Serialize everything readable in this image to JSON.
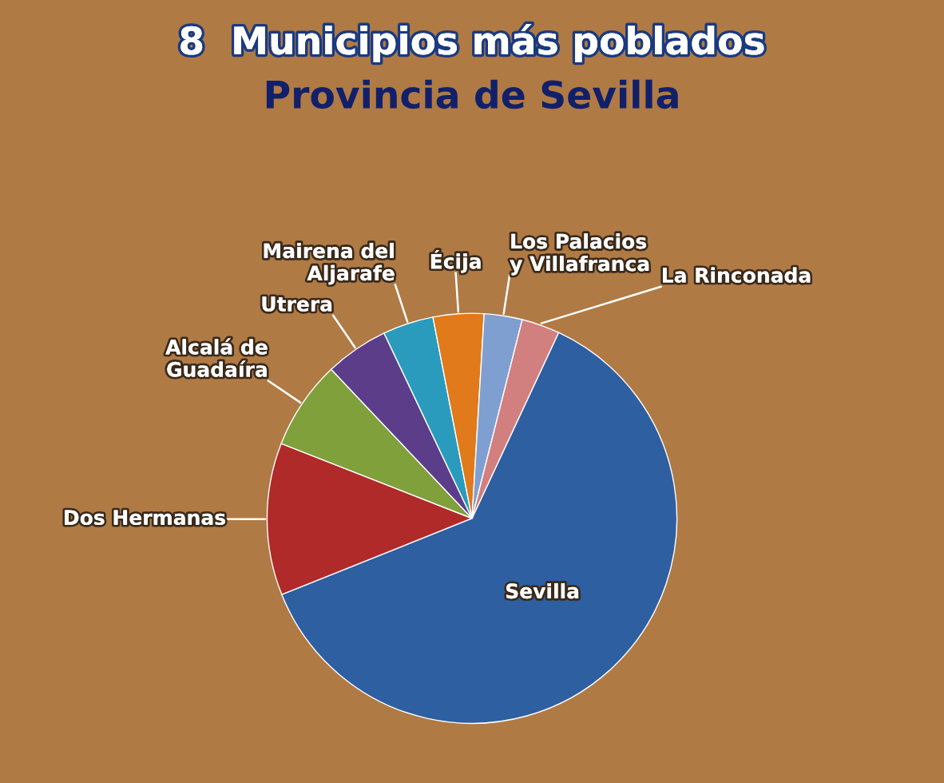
{
  "chart_data": {
    "type": "pie",
    "title": "8  Municipios más poblados",
    "subtitle": "Provincia de Sevilla",
    "categories": [
      "Sevilla",
      "Dos Hermanas",
      "Alcalá de Guadaíra",
      "Utrera",
      "Mairena del Aljarafe",
      "Écija",
      "Los Palacios y Villafranca",
      "La Rinconada"
    ],
    "values": [
      62,
      12,
      7,
      5,
      4,
      4,
      3,
      3
    ],
    "colors": [
      "#2e5fa0",
      "#b02a2a",
      "#7fa03a",
      "#5c3d8a",
      "#2a9bbd",
      "#e07a1a",
      "#7f9fd0",
      "#d27f80"
    ]
  }
}
